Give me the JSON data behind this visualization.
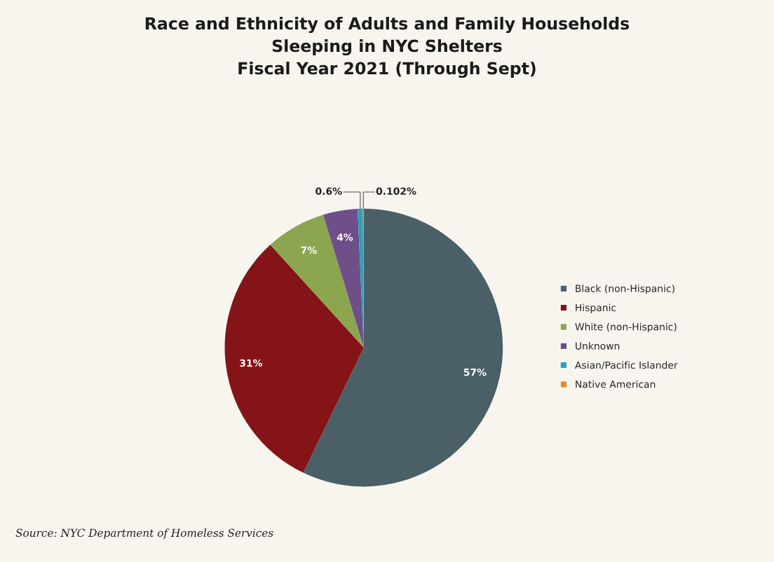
{
  "chart_data": {
    "type": "pie",
    "title": "Race and Ethnicity of Adults and Family Households\nSleeping in NYC Shelters\nFiscal Year 2021 (Through Sept)",
    "categories": [
      "Black (non-Hispanic)",
      "Hispanic",
      "White (non-Hispanic)",
      "Unknown",
      "Asian/Pacific Islander",
      "Native American"
    ],
    "values": [
      57,
      31,
      7,
      4,
      0.6,
      0.102
    ],
    "colors": [
      "#4a5f66",
      "#841418",
      "#8ba64f",
      "#6e4f8a",
      "#2e9fb8",
      "#e8862c"
    ],
    "value_labels": [
      "57%",
      "31%",
      "7%",
      "4%",
      "0.6%",
      "0.102%"
    ],
    "legend": "right",
    "annotations": [
      "Source: NYC Department of Homeless Services"
    ]
  }
}
